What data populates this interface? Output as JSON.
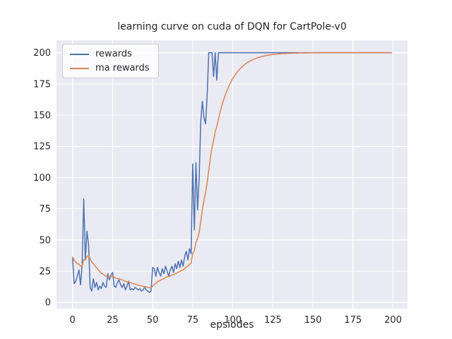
{
  "chart_data": {
    "type": "line",
    "title": "learning curve on cuda of DQN for CartPole-v0",
    "xlabel": "epsiodes",
    "ylabel": "",
    "xlim": [
      -10,
      209
    ],
    "ylim": [
      -5,
      210
    ],
    "xticks": [
      0,
      25,
      50,
      75,
      100,
      125,
      150,
      175,
      200
    ],
    "yticks": [
      0,
      25,
      50,
      75,
      100,
      125,
      150,
      175,
      200
    ],
    "grid": true,
    "legend_position": "upper left",
    "plot_bg": "#eaeaf2",
    "grid_color": "#ffffff",
    "tick_color": "#262626",
    "series": [
      {
        "name": "rewards",
        "color": "#4c72b0",
        "values": [
          36,
          15,
          17,
          21,
          26,
          14,
          30,
          83,
          34,
          57,
          46,
          12,
          9,
          19,
          12,
          16,
          10,
          13,
          11,
          16,
          13,
          12,
          23,
          18,
          22,
          24,
          13,
          12,
          16,
          18,
          14,
          12,
          15,
          10,
          13,
          17,
          10,
          11,
          10,
          12,
          11,
          10,
          11,
          9,
          10,
          12,
          10,
          9,
          8,
          9,
          28,
          27,
          21,
          28,
          24,
          21,
          27,
          23,
          29,
          25,
          21,
          26,
          29,
          24,
          31,
          27,
          33,
          28,
          34,
          29,
          37,
          41,
          34,
          43,
          39,
          111,
          58,
          112,
          74,
          99,
          145,
          161,
          148,
          143,
          166,
          200,
          200,
          200,
          181,
          200,
          178,
          200,
          200,
          200,
          200,
          200,
          200,
          200,
          200,
          200,
          200,
          200,
          200,
          200,
          200,
          200,
          200,
          200,
          200,
          200,
          200,
          200,
          200,
          200,
          200,
          200,
          200,
          200,
          200,
          200,
          200,
          200,
          200,
          200,
          200,
          200,
          200,
          200,
          200,
          200,
          200,
          200,
          200,
          200,
          200,
          200,
          200,
          200,
          200,
          200,
          200,
          200,
          200,
          200,
          200,
          200,
          200,
          200,
          200,
          200,
          200,
          200,
          200,
          200,
          200,
          200,
          200,
          200,
          200,
          200,
          200,
          200,
          200,
          200,
          200,
          200,
          200,
          200,
          200,
          200,
          200,
          200,
          200,
          200,
          200,
          200,
          200,
          200,
          200,
          200,
          200,
          200,
          200,
          200,
          200,
          200,
          200,
          200,
          200,
          200,
          200,
          200,
          200,
          200,
          200,
          200,
          200,
          200,
          200,
          200
        ]
      },
      {
        "name": "ma rewards",
        "color": "#dd8452",
        "values": [
          36,
          33.9,
          32.2,
          31.1,
          30.6,
          28.9,
          29,
          34.4,
          34.4,
          36.6,
          37.6,
          35,
          32.4,
          31.1,
          29.2,
          27.9,
          26.1,
          24.8,
          23.4,
          22.7,
          21.7,
          20.7,
          20.9,
          20.6,
          20.7,
          21,
          20.2,
          19.4,
          19.1,
          19,
          18.5,
          17.9,
          17.6,
          16.8,
          16.4,
          16.5,
          15.9,
          15.4,
          14.9,
          14.6,
          14.2,
          13.8,
          13.5,
          13.1,
          12.8,
          12.7,
          12.4,
          12.1,
          11.7,
          11.4,
          13.1,
          14.5,
          15.2,
          16.5,
          17.3,
          17.7,
          18.6,
          19,
          20,
          20.5,
          20.6,
          21.1,
          21.9,
          22.1,
          23,
          23.4,
          24.4,
          24.8,
          25.7,
          26,
          27.1,
          28.5,
          29.1,
          30.5,
          31.4,
          39.4,
          41.3,
          48.4,
          51,
          55.8,
          64.7,
          74.3,
          81.7,
          87.8,
          95.6,
          106,
          115.4,
          123.9,
          129.6,
          136.6,
          140.8,
          146.7,
          152,
          156.8,
          161.2,
          165,
          168.5,
          171.7,
          174.5,
          177.1,
          179.4,
          181.4,
          183.3,
          185,
          186.5,
          187.8,
          189,
          190.1,
          191.1,
          192,
          192.8,
          193.5,
          194.2,
          194.8,
          195.3,
          195.8,
          196.2,
          196.6,
          196.9,
          197.2,
          197.5,
          197.8,
          198,
          198.2,
          198.4,
          198.6,
          198.7,
          198.8,
          199,
          199.1,
          199.2,
          199.3,
          199.4,
          199.4,
          199.5,
          199.5,
          199.6,
          199.6,
          199.7,
          199.7,
          199.7,
          199.8,
          199.8,
          199.8,
          199.8,
          199.8,
          199.9,
          199.9,
          199.9,
          199.9,
          200,
          200,
          200,
          200,
          200,
          200,
          200,
          200,
          200,
          200,
          200,
          200,
          200,
          200,
          200,
          200,
          200,
          200,
          200,
          200,
          200,
          200,
          200,
          200,
          200,
          200,
          200,
          200,
          200,
          200,
          200,
          200,
          200,
          200,
          200,
          200,
          200,
          200,
          200,
          200,
          200,
          200,
          200,
          200,
          200,
          200,
          200,
          200,
          200,
          200
        ]
      }
    ]
  }
}
